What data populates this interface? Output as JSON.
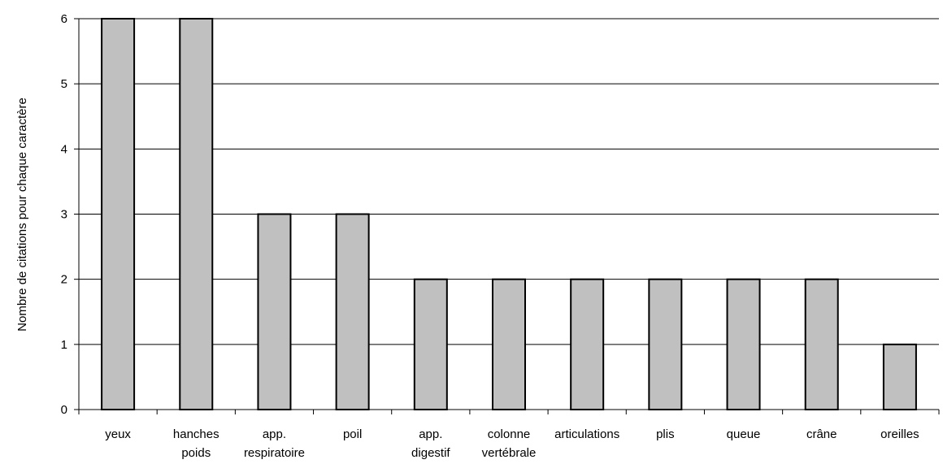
{
  "chart_data": {
    "type": "bar",
    "title": "",
    "xlabel": "",
    "ylabel": "Nombre de citations pour chaque caractère",
    "categories": [
      [
        "yeux"
      ],
      [
        "hanches",
        "poids"
      ],
      [
        "app.",
        "respiratoire"
      ],
      [
        "poil"
      ],
      [
        "app.",
        "digestif"
      ],
      [
        "colonne",
        "vertébrale"
      ],
      [
        "articulations"
      ],
      [
        "plis"
      ],
      [
        "queue"
      ],
      [
        "crâne"
      ],
      [
        "oreilles"
      ]
    ],
    "values": [
      6,
      6,
      3,
      3,
      2,
      2,
      2,
      2,
      2,
      2,
      1
    ],
    "ylim": [
      0,
      6
    ],
    "yticks": [
      0,
      1,
      2,
      3,
      4,
      5,
      6
    ],
    "grid": true,
    "legend": "none",
    "colors": {
      "bar_fill": "#c0c0c0",
      "bar_stroke": "#000000",
      "grid": "#000000"
    }
  }
}
